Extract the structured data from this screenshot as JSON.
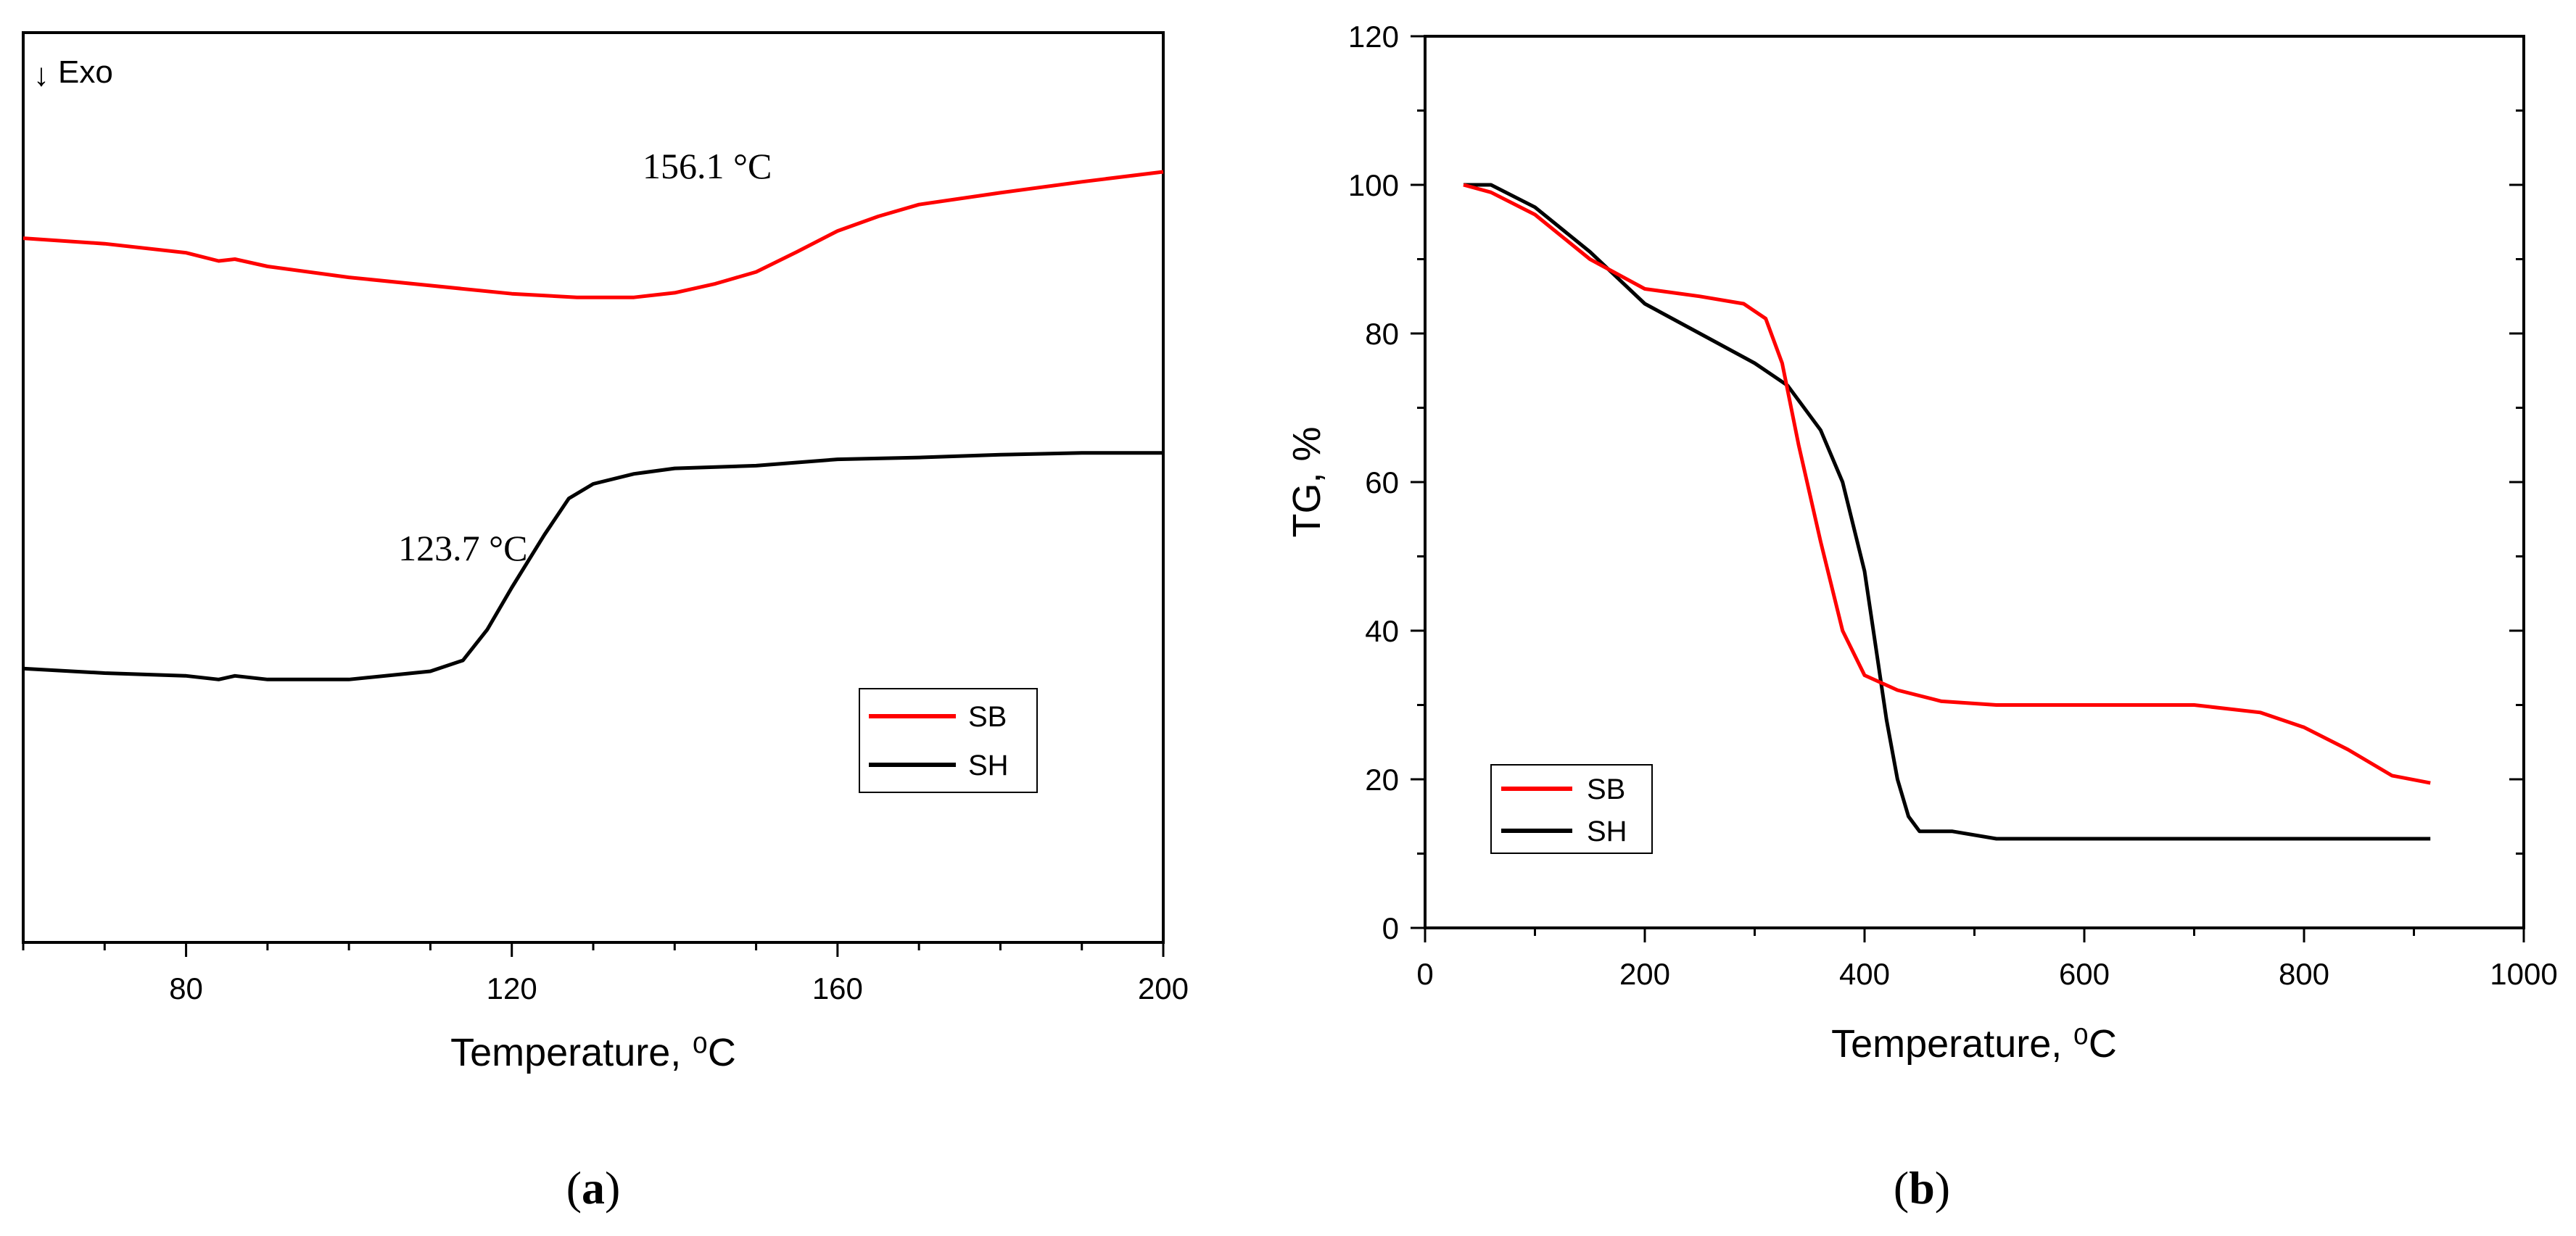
{
  "chart_data": [
    {
      "type": "line",
      "panel_label": "(a)",
      "panel_letter": "a",
      "xlabel": "Temperature, ⁰C",
      "ylabel": "",
      "xlim": [
        60,
        200
      ],
      "ylim": [
        0,
        100
      ],
      "x_ticks": [
        80,
        120,
        160,
        200
      ],
      "y_ticks_shown": false,
      "annotations": [
        {
          "text": "156.1 °C",
          "x": 144,
          "y": 84
        },
        {
          "text": "123.7 °C",
          "x": 114,
          "y": 42
        }
      ],
      "exo_label": "Exo",
      "exo_arrow": "↓",
      "legend": [
        "SB",
        "SH"
      ],
      "legend_position": "bottom-right",
      "series": [
        {
          "name": "SB",
          "color": "#ff0000",
          "x": [
            60,
            70,
            80,
            84,
            86,
            90,
            100,
            110,
            120,
            128,
            135,
            140,
            145,
            150,
            155,
            160,
            165,
            170,
            180,
            190,
            200
          ],
          "y": [
            77.4,
            76.8,
            75.8,
            74.9,
            75.1,
            74.3,
            73.1,
            72.2,
            71.3,
            70.9,
            70.9,
            71.4,
            72.4,
            73.7,
            75.9,
            78.2,
            79.8,
            81.1,
            82.4,
            83.6,
            84.7
          ]
        },
        {
          "name": "SH",
          "color": "#000000",
          "x": [
            60,
            70,
            80,
            84,
            86,
            90,
            100,
            110,
            114,
            117,
            120,
            124,
            127,
            130,
            135,
            140,
            150,
            160,
            170,
            180,
            190,
            200
          ],
          "y": [
            30.1,
            29.6,
            29.3,
            28.9,
            29.3,
            28.9,
            28.9,
            29.8,
            31.0,
            34.4,
            39.0,
            44.8,
            48.8,
            50.4,
            51.5,
            52.1,
            52.4,
            53.1,
            53.3,
            53.6,
            53.8,
            53.8
          ]
        }
      ]
    },
    {
      "type": "line",
      "panel_label": "(b)",
      "panel_letter": "b",
      "xlabel": "Temperature, ⁰C",
      "ylabel": "TG, %",
      "xlim": [
        0,
        1000
      ],
      "ylim": [
        0,
        120
      ],
      "x_ticks": [
        0,
        200,
        400,
        600,
        800,
        1000
      ],
      "y_ticks": [
        0,
        20,
        40,
        60,
        80,
        100,
        120
      ],
      "legend": [
        "SB",
        "SH"
      ],
      "legend_position": "bottom-left",
      "series": [
        {
          "name": "SB",
          "color": "#ff0000",
          "x": [
            35,
            60,
            100,
            150,
            200,
            250,
            290,
            310,
            325,
            340,
            360,
            380,
            400,
            430,
            470,
            520,
            600,
            700,
            760,
            800,
            840,
            880,
            915
          ],
          "y": [
            100,
            99,
            96,
            90,
            86,
            85,
            84,
            82,
            76,
            65,
            52,
            40,
            34,
            32,
            30.5,
            30,
            30,
            30,
            29,
            27,
            24,
            20.5,
            19.5
          ]
        },
        {
          "name": "SH",
          "color": "#000000",
          "x": [
            35,
            60,
            100,
            150,
            200,
            250,
            300,
            330,
            360,
            380,
            400,
            410,
            420,
            430,
            440,
            450,
            460,
            480,
            520,
            600,
            700,
            800,
            915
          ],
          "y": [
            100,
            100,
            97,
            91,
            84,
            80,
            76,
            73,
            67,
            60,
            48,
            38,
            28,
            20,
            15,
            13,
            13,
            13,
            12,
            12,
            12,
            12,
            12
          ]
        }
      ]
    }
  ]
}
